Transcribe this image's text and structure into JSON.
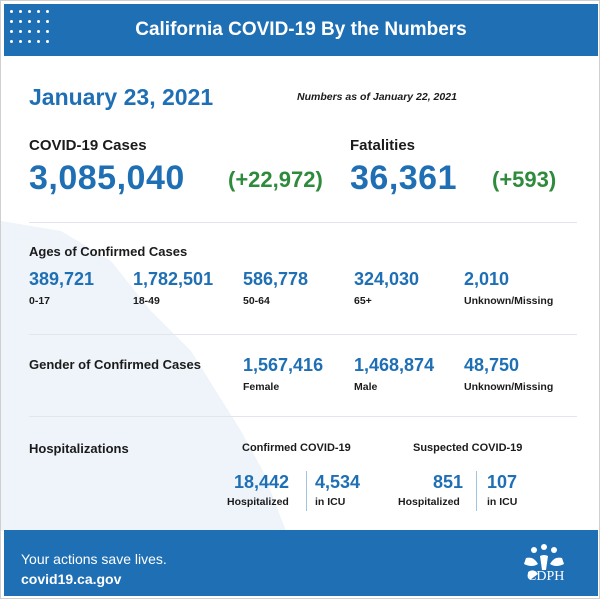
{
  "header": {
    "title": "California COVID-19 By the Numbers"
  },
  "report": {
    "date": "January 23, 2021",
    "as_of": "Numbers as of January 22, 2021"
  },
  "cases": {
    "label": "COVID-19 Cases",
    "total": "3,085,040",
    "change": "(+22,972)"
  },
  "fatalities": {
    "label": "Fatalities",
    "total": "36,361",
    "change": "(+593)"
  },
  "ages": {
    "title": "Ages of Confirmed Cases",
    "groups": [
      {
        "value": "389,721",
        "label": "0-17"
      },
      {
        "value": "1,782,501",
        "label": "18-49"
      },
      {
        "value": "586,778",
        "label": "50-64"
      },
      {
        "value": "324,030",
        "label": "65+"
      },
      {
        "value": "2,010",
        "label": "Unknown/Missing"
      }
    ]
  },
  "gender": {
    "title": "Gender of Confirmed Cases",
    "groups": [
      {
        "value": "1,567,416",
        "label": "Female"
      },
      {
        "value": "1,468,874",
        "label": "Male"
      },
      {
        "value": "48,750",
        "label": "Unknown/Missing"
      }
    ]
  },
  "hospitalizations": {
    "title": "Hospitalizations",
    "confirmed": {
      "heading": "Confirmed COVID-19",
      "hospitalized_value": "18,442",
      "hospitalized_label": "Hospitalized",
      "icu_value": "4,534",
      "icu_label": "in ICU"
    },
    "suspected": {
      "heading": "Suspected COVID-19",
      "hospitalized_value": "851",
      "hospitalized_label": "Hospitalized",
      "icu_value": "107",
      "icu_label": "in ICU"
    }
  },
  "footer": {
    "tagline": "Your actions save lives.",
    "url": "covid19.ca.gov",
    "logo_text": "CDPH"
  },
  "colors": {
    "brand_blue": "#1f6fb5",
    "change_green": "#2e8b3c",
    "map_tint": "#eef4fa"
  }
}
